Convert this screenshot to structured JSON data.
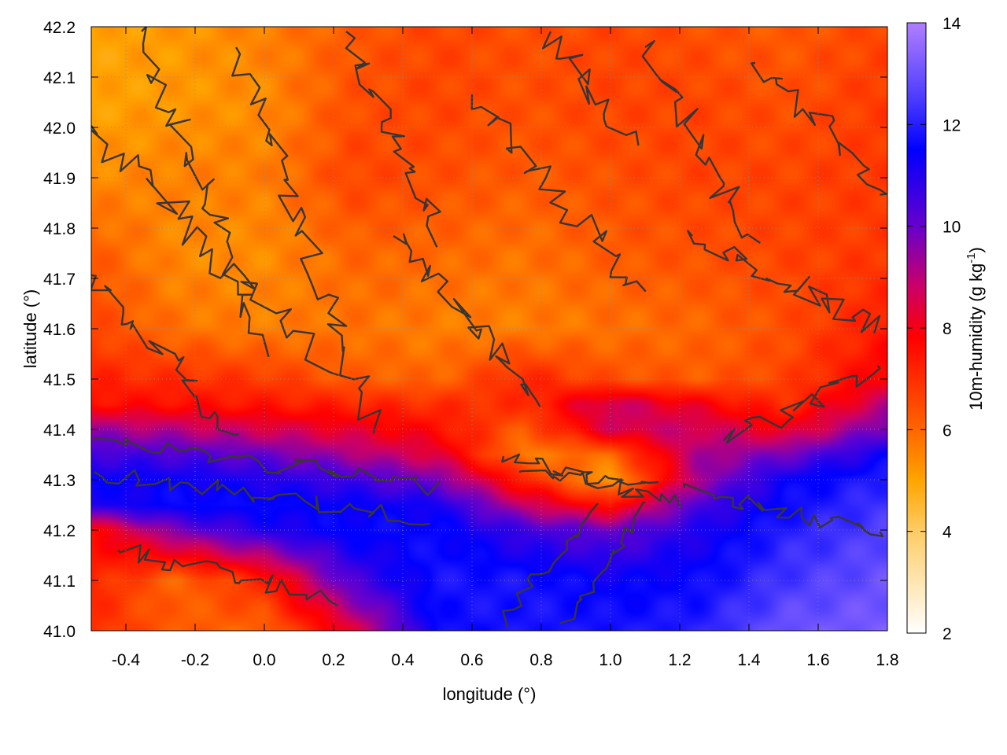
{
  "chart_data": {
    "type": "heatmap",
    "title": "",
    "xlabel": "longitude (°)",
    "ylabel": "latitude (°)",
    "xlim": [
      -0.5,
      1.8
    ],
    "ylim": [
      41.0,
      42.2
    ],
    "x_ticks": [
      -0.4,
      -0.2,
      0.0,
      0.2,
      0.4,
      0.6,
      0.8,
      1.0,
      1.2,
      1.4,
      1.6,
      1.8
    ],
    "x_tick_labels": [
      "-0.4",
      "-0.2",
      "0.0",
      "0.2",
      "0.4",
      "0.6",
      "0.8",
      "1.0",
      "1.2",
      "1.4",
      "1.6",
      "1.8"
    ],
    "y_ticks": [
      41.0,
      41.1,
      41.2,
      41.3,
      41.4,
      41.5,
      41.6,
      41.7,
      41.8,
      41.9,
      42.0,
      42.1,
      42.2
    ],
    "y_tick_labels": [
      "41.0",
      "41.1",
      "41.2",
      "41.3",
      "41.4",
      "41.5",
      "41.6",
      "41.7",
      "41.8",
      "41.9",
      "42.0",
      "42.1",
      "42.2"
    ],
    "grid": true,
    "colorbar": {
      "label": "10m-humidity (g kg-1)",
      "label_main": "10m-humidity (g kg",
      "label_sup": "-1",
      "label_close": ")",
      "range": [
        2,
        14
      ],
      "ticks": [
        2,
        4,
        6,
        8,
        10,
        12,
        14
      ],
      "tick_labels": [
        "2",
        "4",
        "6",
        "8",
        "10",
        "12",
        "14"
      ],
      "colors": [
        "#ffffff",
        "#ffcc66",
        "#ffa500",
        "#ff6600",
        "#ff0000",
        "#cc0066",
        "#6600cc",
        "#0000ff",
        "#4b3bff",
        "#b07fff"
      ],
      "color_stops": [
        2,
        4,
        5,
        6,
        7.8,
        8.8,
        10,
        11.5,
        12.5,
        14
      ]
    },
    "field_samples": {
      "lons": [
        -0.5,
        -0.25,
        0.0,
        0.25,
        0.5,
        0.75,
        1.0,
        1.25,
        1.5,
        1.8
      ],
      "lats": [
        42.2,
        42.05,
        41.9,
        41.75,
        41.6,
        41.5,
        41.45,
        41.4,
        41.35,
        41.3,
        41.25,
        41.2,
        41.1,
        41.0
      ],
      "humidity": [
        [
          5.0,
          5.2,
          5.6,
          6.2,
          6.6,
          6.4,
          6.6,
          6.4,
          6.2,
          6.6
        ],
        [
          5.0,
          5.2,
          5.4,
          6.4,
          6.6,
          6.4,
          6.6,
          6.6,
          6.4,
          6.8
        ],
        [
          5.4,
          5.6,
          5.6,
          6.6,
          6.4,
          6.2,
          6.4,
          6.6,
          6.6,
          6.8
        ],
        [
          6.2,
          5.4,
          5.4,
          6.0,
          6.0,
          5.8,
          6.2,
          6.4,
          6.6,
          6.8
        ],
        [
          6.6,
          5.8,
          5.6,
          5.8,
          5.6,
          5.6,
          5.8,
          6.0,
          6.4,
          7.4
        ],
        [
          7.2,
          7.0,
          6.8,
          6.2,
          6.0,
          7.2,
          6.4,
          6.2,
          6.6,
          8.0
        ],
        [
          7.6,
          7.6,
          7.4,
          7.2,
          7.0,
          7.0,
          8.8,
          8.0,
          7.0,
          9.0
        ],
        [
          9.4,
          9.0,
          8.6,
          8.2,
          7.6,
          6.2,
          8.6,
          8.8,
          8.0,
          10.0
        ],
        [
          10.6,
          10.4,
          10.0,
          9.2,
          8.4,
          5.6,
          6.0,
          9.2,
          9.8,
          11.4
        ],
        [
          11.4,
          11.4,
          11.0,
          10.6,
          9.8,
          7.2,
          5.0,
          9.2,
          11.4,
          12.0
        ],
        [
          11.0,
          11.6,
          11.6,
          11.4,
          11.2,
          8.8,
          7.4,
          10.4,
          11.6,
          12.4
        ],
        [
          7.6,
          9.8,
          11.0,
          11.6,
          11.6,
          10.6,
          10.0,
          11.0,
          12.0,
          12.6
        ],
        [
          7.2,
          6.0,
          7.2,
          10.4,
          11.8,
          11.8,
          11.4,
          11.6,
          12.4,
          13.0
        ],
        [
          7.0,
          6.2,
          6.0,
          8.2,
          11.6,
          11.8,
          11.8,
          12.0,
          13.0,
          13.2
        ]
      ]
    }
  }
}
